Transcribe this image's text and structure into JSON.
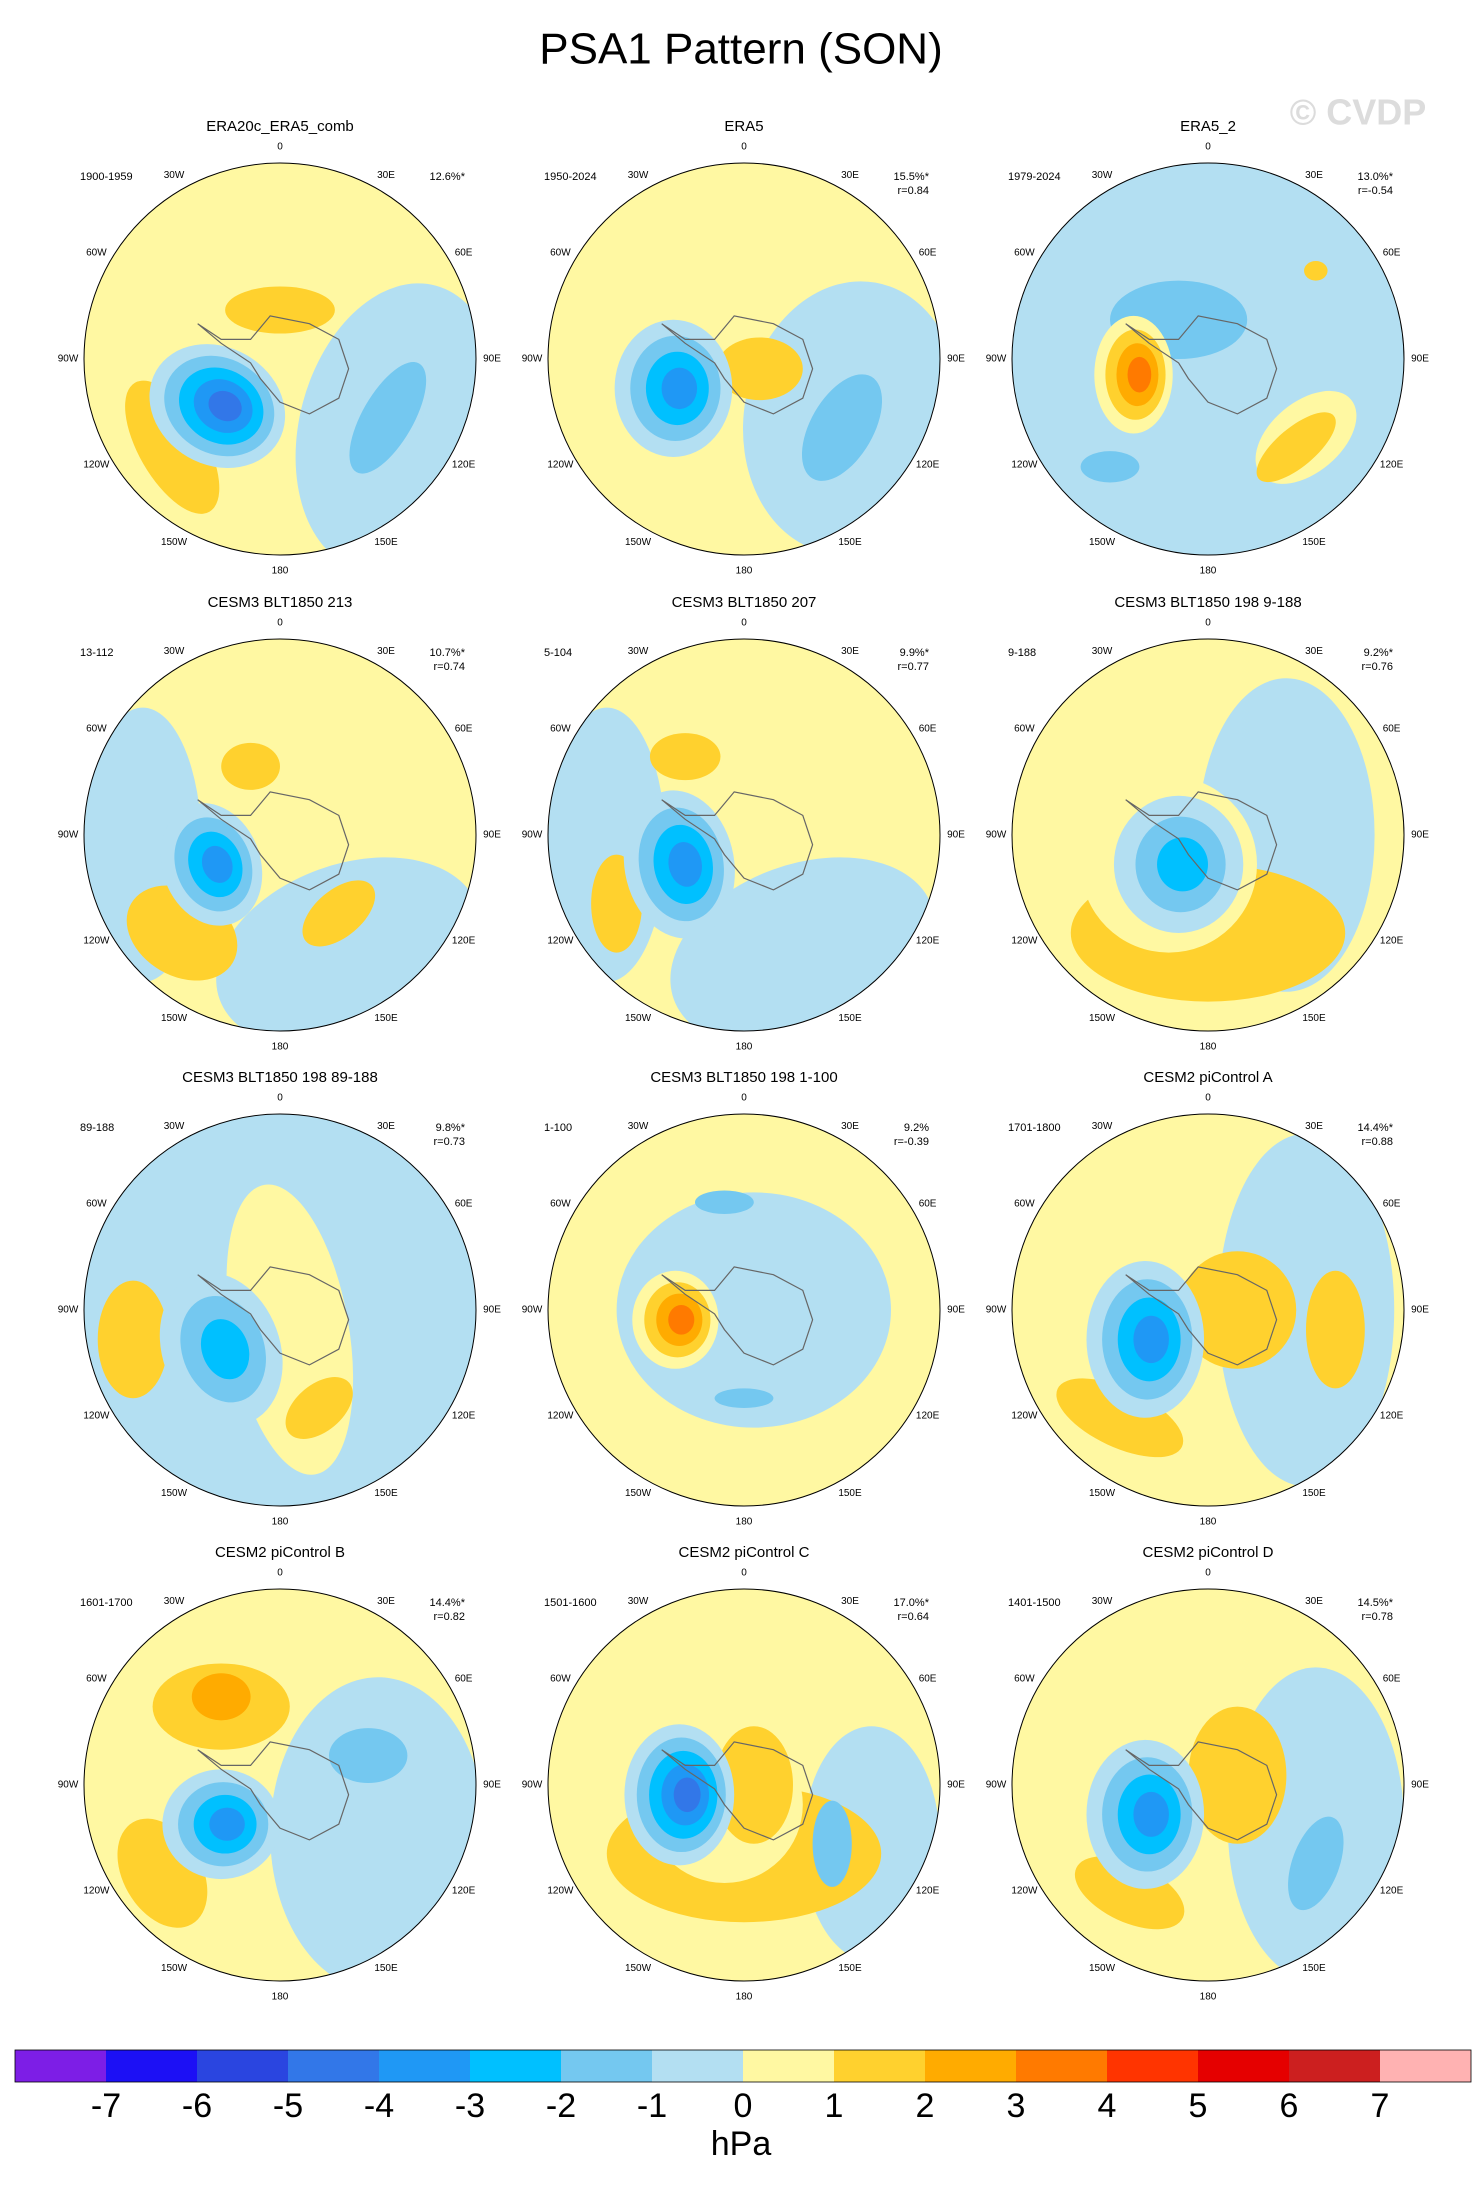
{
  "title": "PSA1 Pattern (SON)",
  "watermark": "© CVDP",
  "longitude_labels": [
    "0",
    "30E",
    "60E",
    "90E",
    "120E",
    "150E",
    "180",
    "150W",
    "120W",
    "90W",
    "60W",
    "30W"
  ],
  "panels": [
    {
      "title": "ERA20c_ERA5_comb",
      "period": "1900-1959",
      "percent": "12.6%*"
    },
    {
      "title": "ERA5",
      "period": "1950-2024",
      "percent": "15.5%*",
      "r": "r=0.84"
    },
    {
      "title": "ERA5_2",
      "period": "1979-2024",
      "percent": "13.0%*",
      "r": "r=-0.54"
    },
    {
      "title": "CESM3 BLT1850 213",
      "period": "13-112",
      "percent": "10.7%*",
      "r": "r=0.74"
    },
    {
      "title": "CESM3 BLT1850 207",
      "period": "5-104",
      "percent": "9.9%*",
      "r": "r=0.77"
    },
    {
      "title": "CESM3 BLT1850 198 9-188",
      "period": "9-188",
      "percent": "9.2%*",
      "r": "r=0.76"
    },
    {
      "title": "CESM3 BLT1850 198 89-188",
      "period": "89-188",
      "percent": "9.8%*",
      "r": "r=0.73"
    },
    {
      "title": "CESM3 BLT1850 198 1-100",
      "period": "1-100",
      "percent": "9.2%",
      "r": "r=-0.39"
    },
    {
      "title": "CESM2 piControl A",
      "period": "1701-1800",
      "percent": "14.4%*",
      "r": "r=0.88"
    },
    {
      "title": "CESM2 piControl B",
      "period": "1601-1700",
      "percent": "14.4%*",
      "r": "r=0.82"
    },
    {
      "title": "CESM2 piControl C",
      "period": "1501-1600",
      "percent": "17.0%*",
      "r": "r=0.64"
    },
    {
      "title": "CESM2 piControl D",
      "period": "1401-1500",
      "percent": "14.5%*",
      "r": "r=0.78"
    }
  ],
  "colorbar": {
    "colors": [
      "#7d1ee6",
      "#1c10f5",
      "#2a45e0",
      "#3277e8",
      "#1f98f5",
      "#00c0ff",
      "#74c8f0",
      "#b3dff2",
      "#fff8a2",
      "#ffd12e",
      "#ffab00",
      "#ff7a00",
      "#ff3400",
      "#e50000",
      "#cc1f1f",
      "#ffb2b2"
    ],
    "labels": [
      -7,
      -6,
      -5,
      -4,
      -3,
      -2,
      -1,
      0,
      1,
      2,
      3,
      4,
      5,
      6,
      7
    ],
    "unit": "hPa"
  }
}
